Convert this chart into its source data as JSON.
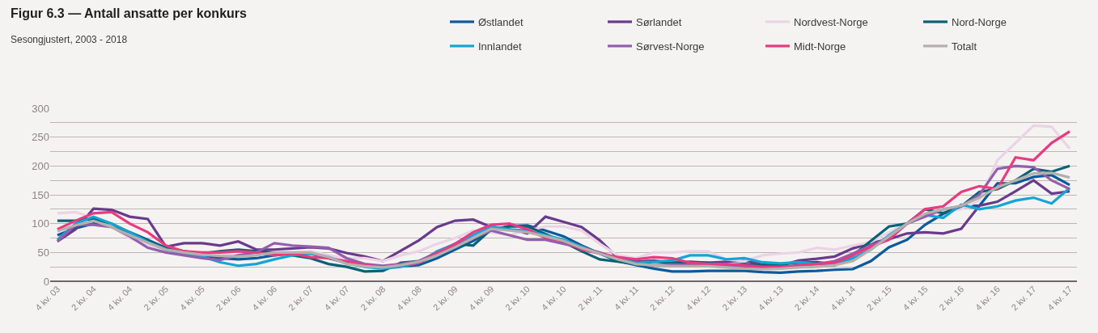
{
  "chart_data": {
    "type": "line",
    "title": "Figur 6.3 — Antall ansatte per konkurs",
    "subtitle": "Sesongjustert, 2003 - 2018",
    "categories": [
      "4 kv. 03",
      null,
      "2 kv. 04",
      null,
      "4 kv. 04",
      null,
      "2 kv. 05",
      null,
      "4 kv. 05",
      null,
      "2 kv. 06",
      null,
      "4 kv. 06",
      null,
      "2 kv. 07",
      null,
      "4 kv. 07",
      null,
      "2 kv. 08",
      null,
      "4 kv. 08",
      null,
      "2 kv. 09",
      null,
      "4 kv. 09",
      null,
      "2 kv. 10",
      null,
      "4 kv. 10",
      null,
      "2 kv. 11",
      null,
      "4 kv. 11",
      null,
      "2 kv. 12",
      null,
      "4 kv. 12",
      null,
      "2 kv. 13",
      null,
      "4 kv. 13",
      null,
      "2 kv. 14",
      null,
      "4 kv. 14",
      null,
      "2 kv. 15",
      null,
      "4 kv. 15",
      null,
      "2 kv. 16",
      null,
      "4 kv. 16",
      null,
      "2 kv. 17",
      null,
      "4 kv. 17"
    ],
    "series": [
      {
        "name": "Østlandet",
        "color": "#0b5a9c",
        "values": [
          80,
          92,
          100,
          95,
          85,
          72,
          58,
          50,
          45,
          40,
          38,
          40,
          45,
          48,
          48,
          40,
          32,
          28,
          25,
          26,
          28,
          40,
          55,
          70,
          88,
          96,
          97,
          88,
          78,
          62,
          48,
          35,
          28,
          22,
          17,
          17,
          18,
          18,
          18,
          16,
          15,
          17,
          18,
          20,
          21,
          35,
          59,
          72,
          98,
          117,
          131,
          131,
          170,
          170,
          181,
          184,
          167
        ]
      },
      {
        "name": "Sørlandet",
        "color": "#6a3a8c",
        "values": [
          69,
          90,
          126,
          124,
          112,
          108,
          60,
          66,
          66,
          62,
          69,
          55,
          55,
          57,
          59,
          57,
          49,
          43,
          35,
          53,
          71,
          94,
          105,
          107,
          94,
          90,
          83,
          112,
          103,
          94,
          71,
          41,
          34,
          36,
          32,
          34,
          32,
          34,
          36,
          29,
          27,
          36,
          39,
          43,
          57,
          66,
          73,
          83,
          85,
          83,
          91,
          131,
          138,
          156,
          175,
          152,
          156
        ]
      },
      {
        "name": "Nordvest-Norge",
        "color": "#ecd3e6",
        "values": [
          118,
          120,
          110,
          95,
          75,
          62,
          55,
          50,
          45,
          48,
          45,
          45,
          50,
          50,
          52,
          45,
          40,
          40,
          35,
          45,
          52,
          65,
          75,
          88,
          85,
          80,
          88,
          95,
          95,
          88,
          65,
          45,
          40,
          50,
          50,
          52,
          52,
          38,
          35,
          45,
          48,
          50,
          58,
          55,
          62,
          68,
          85,
          100,
          115,
          120,
          125,
          140,
          210,
          240,
          270,
          268,
          230
        ]
      },
      {
        "name": "Nord-Norge",
        "color": "#0b6176",
        "values": [
          105,
          105,
          108,
          100,
          85,
          70,
          58,
          52,
          48,
          52,
          55,
          52,
          50,
          45,
          40,
          30,
          25,
          17,
          18,
          32,
          35,
          48,
          65,
          62,
          90,
          95,
          95,
          82,
          68,
          52,
          38,
          34,
          30,
          34,
          32,
          32,
          32,
          28,
          30,
          27,
          30,
          32,
          33,
          30,
          45,
          70,
          95,
          100,
          125,
          118,
          130,
          155,
          160,
          175,
          195,
          190,
          200
        ]
      },
      {
        "name": "Innlandet",
        "color": "#12a6d4",
        "values": [
          72,
          100,
          112,
          100,
          85,
          68,
          55,
          48,
          43,
          33,
          27,
          30,
          38,
          45,
          48,
          42,
          32,
          25,
          22,
          25,
          32,
          52,
          65,
          80,
          95,
          90,
          88,
          80,
          72,
          60,
          48,
          40,
          32,
          34,
          36,
          45,
          45,
          38,
          40,
          33,
          31,
          33,
          30,
          28,
          40,
          55,
          80,
          100,
          115,
          110,
          133,
          125,
          130,
          140,
          145,
          135,
          162
        ]
      },
      {
        "name": "Sørvest-Norge",
        "color": "#935eae",
        "values": [
          69,
          98,
          98,
          94,
          78,
          58,
          50,
          45,
          40,
          37,
          45,
          50,
          66,
          62,
          60,
          58,
          40,
          30,
          27,
          30,
          35,
          50,
          62,
          75,
          88,
          80,
          72,
          72,
          65,
          58,
          50,
          40,
          30,
          28,
          29,
          28,
          28,
          26,
          26,
          24,
          24,
          28,
          30,
          35,
          48,
          62,
          75,
          100,
          112,
          125,
          130,
          150,
          195,
          200,
          198,
          175,
          160
        ]
      },
      {
        "name": "Midt-Norge",
        "color": "#ea3a80",
        "values": [
          90,
          105,
          118,
          120,
          100,
          85,
          62,
          52,
          50,
          50,
          52,
          50,
          45,
          48,
          42,
          40,
          35,
          28,
          25,
          28,
          32,
          48,
          65,
          85,
          98,
          100,
          90,
          75,
          70,
          55,
          48,
          42,
          38,
          42,
          40,
          32,
          30,
          30,
          28,
          25,
          25,
          27,
          30,
          32,
          45,
          60,
          72,
          100,
          125,
          130,
          155,
          165,
          160,
          215,
          210,
          240,
          260
        ]
      },
      {
        "name": "Totalt",
        "color": "#b3b0ac",
        "values": [
          87,
          97,
          105,
          94,
          80,
          67,
          55,
          50,
          46,
          44,
          43,
          45,
          50,
          50,
          50,
          42,
          30,
          26,
          24,
          28,
          34,
          45,
          59,
          75,
          91,
          88,
          85,
          78,
          70,
          58,
          48,
          38,
          30,
          28,
          26,
          26,
          26,
          24,
          22,
          21,
          22,
          24,
          25,
          28,
          35,
          55,
          78,
          100,
          117,
          125,
          131,
          145,
          163,
          175,
          187,
          188,
          180
        ]
      }
    ],
    "ylim": [
      0,
      300
    ],
    "yticks": [
      0,
      {
        "value": 25,
        "label": null
      },
      50,
      {
        "value": 75,
        "label": null
      },
      100,
      {
        "value": 125,
        "label": null
      },
      150,
      {
        "value": 175,
        "label": null
      },
      200,
      {
        "value": 225,
        "label": null
      },
      250,
      {
        "value": 275,
        "label": null
      },
      300
    ],
    "grid": "y",
    "legend": "top right",
    "marker": "none",
    "line_style": "solid"
  }
}
